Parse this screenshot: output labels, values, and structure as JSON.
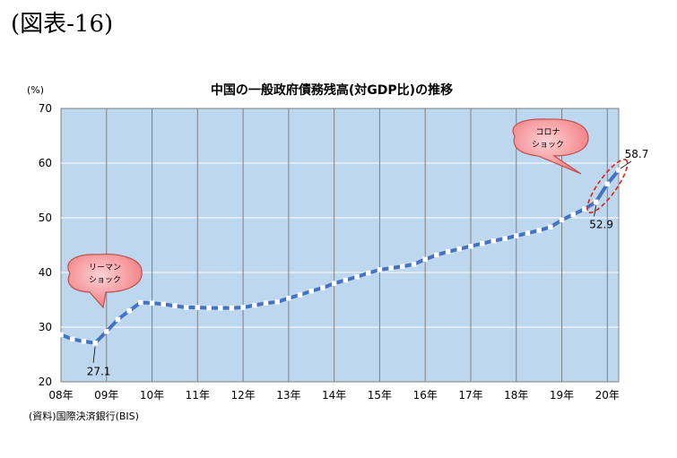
{
  "figure_label": "(図表-16)",
  "source_note": "(資料)国際決済銀行(BIS)",
  "chart_data": {
    "type": "line",
    "title": "中国の一般政府債務残高(対GDP比)の推移",
    "ylabel": "(%)",
    "ylim": [
      20,
      70
    ],
    "yticks": [
      20,
      30,
      40,
      50,
      60,
      70
    ],
    "xlim": [
      2008.0,
      2020.25
    ],
    "xticks": [
      {
        "x": 2008,
        "label": "08年"
      },
      {
        "x": 2009,
        "label": "09年"
      },
      {
        "x": 2010,
        "label": "10年"
      },
      {
        "x": 2011,
        "label": "11年"
      },
      {
        "x": 2012,
        "label": "12年"
      },
      {
        "x": 2013,
        "label": "13年"
      },
      {
        "x": 2014,
        "label": "14年"
      },
      {
        "x": 2015,
        "label": "15年"
      },
      {
        "x": 2016,
        "label": "16年"
      },
      {
        "x": 2017,
        "label": "17年"
      },
      {
        "x": 2018,
        "label": "18年"
      },
      {
        "x": 2019,
        "label": "19年"
      },
      {
        "x": 2020,
        "label": "20年"
      }
    ],
    "grid": true,
    "plot_bg": "#bdd7ee",
    "line_color": "#4472c4",
    "series": [
      {
        "x": [
          2008.0,
          2008.25,
          2008.5,
          2008.75,
          2009.0,
          2009.25,
          2009.5,
          2009.75,
          2010.0,
          2010.25,
          2010.5,
          2010.75,
          2011.0,
          2011.25,
          2011.5,
          2011.75,
          2012.0,
          2012.25,
          2012.5,
          2012.75,
          2013.0,
          2013.25,
          2013.5,
          2013.75,
          2014.0,
          2014.25,
          2014.5,
          2014.75,
          2015.0,
          2015.25,
          2015.5,
          2015.75,
          2016.0,
          2016.25,
          2016.5,
          2016.75,
          2017.0,
          2017.25,
          2017.5,
          2017.75,
          2018.0,
          2018.25,
          2018.5,
          2018.75,
          2019.0,
          2019.25,
          2019.5,
          2019.75,
          2020.0,
          2020.25
        ],
        "values": [
          28.6,
          27.8,
          27.4,
          27.1,
          29.2,
          31.4,
          33.0,
          34.5,
          34.4,
          34.2,
          33.9,
          33.6,
          33.6,
          33.5,
          33.5,
          33.5,
          33.6,
          34.0,
          34.4,
          34.6,
          35.3,
          35.9,
          36.6,
          37.2,
          38.0,
          38.6,
          39.2,
          39.9,
          40.5,
          40.8,
          41.1,
          41.5,
          42.4,
          43.2,
          43.8,
          44.3,
          44.8,
          45.3,
          45.8,
          46.2,
          46.7,
          47.2,
          47.7,
          48.3,
          49.6,
          50.6,
          51.6,
          52.9,
          56.2,
          58.7
        ]
      }
    ],
    "annotations": [
      {
        "text": "27.1",
        "x": 2008.75,
        "y": 27.1
      },
      {
        "text": "52.9",
        "x": 2019.75,
        "y": 52.9
      },
      {
        "text": "58.7",
        "x": 2020.25,
        "y": 58.7
      },
      {
        "lines": [
          "リーマン",
          "ショック"
        ],
        "type": "callout"
      },
      {
        "lines": [
          "コロナ",
          "ショック"
        ],
        "type": "callout"
      }
    ]
  }
}
